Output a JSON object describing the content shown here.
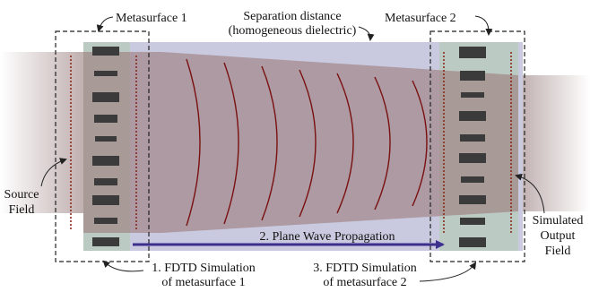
{
  "labels": {
    "metasurface_1": "Metasurface 1",
    "metasurface_2": "Metasurface 2",
    "separation_line1": "Separation distance",
    "separation_line2": "(homogeneous dielectric)",
    "source_line1": "Source",
    "source_line2": "Field",
    "output_line1": "Simulated",
    "output_line2": "Output",
    "output_line3": "Field",
    "propagation": "2. Plane Wave Propagation",
    "fdtd1_line1": "1. FDTD Simulation",
    "fdtd1_line2": "of metasurface 1",
    "fdtd3_line1": "3. FDTD Simulation",
    "fdtd3_line2": "of metasurface 2"
  },
  "colors": {
    "beam": "#bfaeae",
    "beam_dark": "#9c7c7c",
    "dielectric": "#c9cadf",
    "meta_bg": "#b9cac0",
    "pillar": "#3b3b3b",
    "wavefront": "#7a1010",
    "field_line": "#8a2a1a",
    "arrow": "#3c2f8e",
    "box": "#222222"
  }
}
